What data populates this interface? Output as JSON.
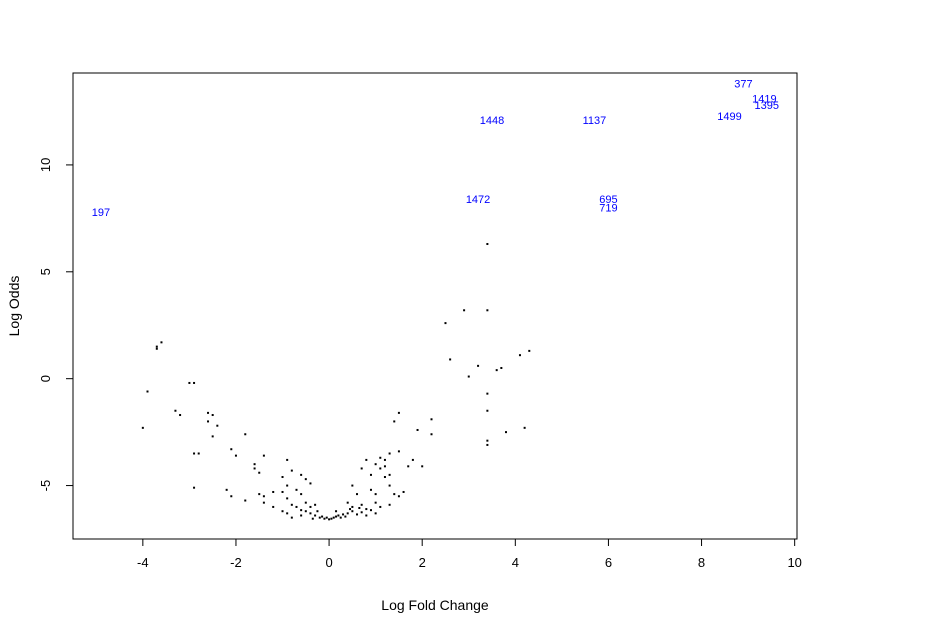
{
  "chart_data": {
    "type": "scatter",
    "title": "",
    "xlabel": "Log Fold Change",
    "ylabel": "Log Odds",
    "xlim": [
      -5.5,
      10.05
    ],
    "ylim": [
      -7.5,
      14.3
    ],
    "xticks": [
      "-4",
      "-2",
      "0",
      "2",
      "4",
      "6",
      "8",
      "10"
    ],
    "yticks": [
      "-5",
      "0",
      "5",
      "10"
    ],
    "grid": false,
    "colors": {
      "points": "#000000",
      "labels": "#0000FF",
      "frame": "#000000"
    },
    "labeled_points": [
      {
        "label": "377",
        "x": 8.9,
        "y": 13.8
      },
      {
        "label": "1419",
        "x": 9.35,
        "y": 13.1
      },
      {
        "label": "1395",
        "x": 9.4,
        "y": 12.8
      },
      {
        "label": "1499",
        "x": 8.6,
        "y": 12.3
      },
      {
        "label": "1448",
        "x": 3.5,
        "y": 12.1
      },
      {
        "label": "1137",
        "x": 5.7,
        "y": 12.1
      },
      {
        "label": "1472",
        "x": 3.2,
        "y": 8.4
      },
      {
        "label": "695",
        "x": 6.0,
        "y": 8.4
      },
      {
        "label": "719",
        "x": 6.0,
        "y": 8.0
      },
      {
        "label": "197",
        "x": -4.9,
        "y": 7.8
      }
    ],
    "points": [
      [
        3.4,
        6.3
      ],
      [
        -3.6,
        1.7
      ],
      [
        -3.7,
        1.5
      ],
      [
        -3.7,
        1.4
      ],
      [
        2.5,
        2.6
      ],
      [
        2.9,
        3.2
      ],
      [
        3.4,
        3.2
      ],
      [
        4.3,
        1.3
      ],
      [
        4.1,
        1.1
      ],
      [
        2.6,
        0.9
      ],
      [
        3.2,
        0.6
      ],
      [
        3.7,
        0.5
      ],
      [
        3.6,
        0.4
      ],
      [
        3.0,
        0.1
      ],
      [
        -2.9,
        -0.2
      ],
      [
        -3.0,
        -0.2
      ],
      [
        -3.9,
        -0.6
      ],
      [
        3.4,
        -0.7
      ],
      [
        -3.3,
        -1.5
      ],
      [
        3.4,
        -1.5
      ],
      [
        -3.2,
        -1.7
      ],
      [
        -2.6,
        -1.6
      ],
      [
        -2.5,
        -1.7
      ],
      [
        1.5,
        -1.6
      ],
      [
        -2.6,
        -2.0
      ],
      [
        1.4,
        -2.0
      ],
      [
        2.2,
        -1.9
      ],
      [
        -2.4,
        -2.2
      ],
      [
        -4.0,
        -2.3
      ],
      [
        4.2,
        -2.3
      ],
      [
        1.9,
        -2.4
      ],
      [
        -1.8,
        -2.6
      ],
      [
        -2.5,
        -2.7
      ],
      [
        2.2,
        -2.6
      ],
      [
        3.8,
        -2.5
      ],
      [
        3.4,
        -2.9
      ],
      [
        3.4,
        -3.1
      ],
      [
        -2.1,
        -3.3
      ],
      [
        -2.8,
        -3.5
      ],
      [
        -2.9,
        -3.5
      ],
      [
        -2.0,
        -3.6
      ],
      [
        -1.4,
        -3.6
      ],
      [
        1.3,
        -3.5
      ],
      [
        1.5,
        -3.4
      ],
      [
        -0.9,
        -3.8
      ],
      [
        0.8,
        -3.8
      ],
      [
        1.1,
        -3.7
      ],
      [
        1.2,
        -3.8
      ],
      [
        1.8,
        -3.8
      ],
      [
        -1.6,
        -4.0
      ],
      [
        -1.6,
        -4.2
      ],
      [
        1.0,
        -4.0
      ],
      [
        1.7,
        -4.1
      ],
      [
        2.0,
        -4.1
      ],
      [
        -1.5,
        -4.4
      ],
      [
        -0.8,
        -4.3
      ],
      [
        0.7,
        -4.2
      ],
      [
        1.1,
        -4.2
      ],
      [
        1.2,
        -4.1
      ],
      [
        -1.0,
        -4.6
      ],
      [
        -0.6,
        -4.5
      ],
      [
        -0.5,
        -4.7
      ],
      [
        0.9,
        -4.5
      ],
      [
        1.2,
        -4.6
      ],
      [
        1.3,
        -4.5
      ],
      [
        -2.9,
        -5.1
      ],
      [
        -2.2,
        -5.2
      ],
      [
        -0.9,
        -5.0
      ],
      [
        -0.4,
        -4.9
      ],
      [
        0.5,
        -5.0
      ],
      [
        1.3,
        -5.0
      ],
      [
        -2.1,
        -5.5
      ],
      [
        -1.5,
        -5.4
      ],
      [
        -1.4,
        -5.5
      ],
      [
        -1.8,
        -5.7
      ],
      [
        -1.2,
        -5.3
      ],
      [
        -1.0,
        -5.3
      ],
      [
        -0.9,
        -5.6
      ],
      [
        -0.7,
        -5.2
      ],
      [
        -0.6,
        -5.4
      ],
      [
        0.6,
        -5.4
      ],
      [
        0.9,
        -5.2
      ],
      [
        1.0,
        -5.4
      ],
      [
        1.4,
        -5.4
      ],
      [
        1.5,
        -5.5
      ],
      [
        1.6,
        -5.3
      ],
      [
        -1.4,
        -5.8
      ],
      [
        -1.2,
        -6.0
      ],
      [
        -1.0,
        -6.2
      ],
      [
        -0.8,
        -5.9
      ],
      [
        -0.7,
        -6.0
      ],
      [
        -0.5,
        -5.8
      ],
      [
        -0.4,
        -6.0
      ],
      [
        -0.3,
        -5.9
      ],
      [
        0.4,
        -5.8
      ],
      [
        0.5,
        -6.0
      ],
      [
        0.7,
        -5.9
      ],
      [
        0.8,
        -6.1
      ],
      [
        1.0,
        -5.8
      ],
      [
        1.1,
        -6.0
      ],
      [
        1.3,
        -5.9
      ],
      [
        -0.9,
        -6.3
      ],
      [
        -0.8,
        -6.5
      ],
      [
        -0.6,
        -6.4
      ],
      [
        -0.5,
        -6.2
      ],
      [
        -0.4,
        -6.3
      ],
      [
        -0.3,
        -6.4
      ],
      [
        -0.2,
        -6.5
      ],
      [
        -0.15,
        -6.45
      ],
      [
        -0.1,
        -6.55
      ],
      [
        -0.05,
        -6.5
      ],
      [
        0.0,
        -6.58
      ],
      [
        0.05,
        -6.55
      ],
      [
        0.1,
        -6.5
      ],
      [
        0.15,
        -6.45
      ],
      [
        0.2,
        -6.4
      ],
      [
        0.25,
        -6.5
      ],
      [
        0.3,
        -6.35
      ],
      [
        0.35,
        -6.45
      ],
      [
        0.4,
        -6.3
      ],
      [
        0.5,
        -6.2
      ],
      [
        0.6,
        -6.35
      ],
      [
        0.7,
        -6.25
      ],
      [
        0.8,
        -6.4
      ],
      [
        0.9,
        -6.15
      ],
      [
        1.0,
        -6.3
      ],
      [
        -0.35,
        -6.55
      ],
      [
        -0.25,
        -6.2
      ],
      [
        0.15,
        -6.2
      ],
      [
        0.45,
        -6.1
      ],
      [
        -0.6,
        -6.15
      ],
      [
        0.65,
        -6.05
      ]
    ]
  }
}
